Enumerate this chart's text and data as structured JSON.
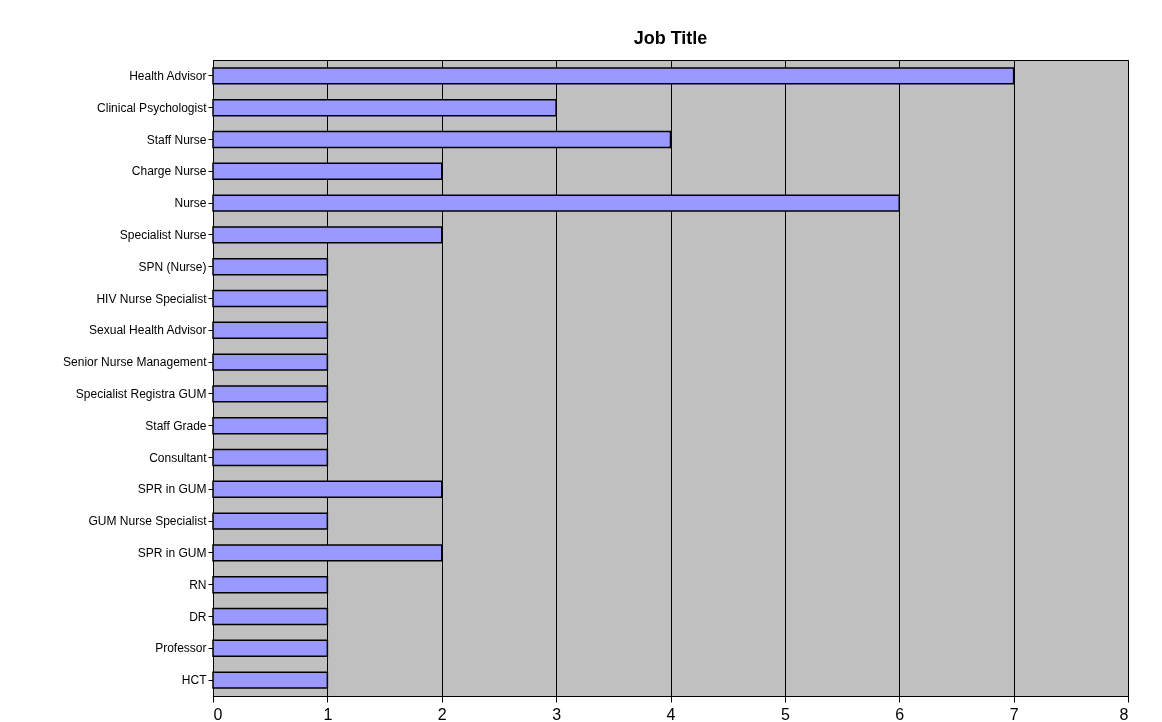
{
  "chart_data": {
    "type": "bar",
    "orientation": "horizontal",
    "title": "Job Title",
    "categories": [
      "Health Advisor",
      "Clinical Psychologist",
      "Staff Nurse",
      "Charge Nurse",
      "Nurse",
      "Specialist Nurse",
      "SPN (Nurse)",
      "HIV Nurse Specialist",
      "Sexual Health Advisor",
      "Senior Nurse Management",
      "Specialist Registra GUM",
      "Staff Grade",
      "Consultant",
      "SPR in GUM",
      "GUM Nurse Specialist",
      "SPR in GUM",
      "RN",
      "DR",
      "Professor",
      "HCT"
    ],
    "values": [
      7,
      3,
      4,
      2,
      6,
      2,
      1,
      1,
      1,
      1,
      1,
      1,
      1,
      2,
      1,
      2,
      1,
      1,
      1,
      1
    ],
    "color": "#9999ff",
    "xlim": [
      0,
      8
    ],
    "xticks": [
      0,
      1,
      2,
      3,
      4,
      5,
      6,
      7,
      8
    ],
    "grid": "x"
  }
}
